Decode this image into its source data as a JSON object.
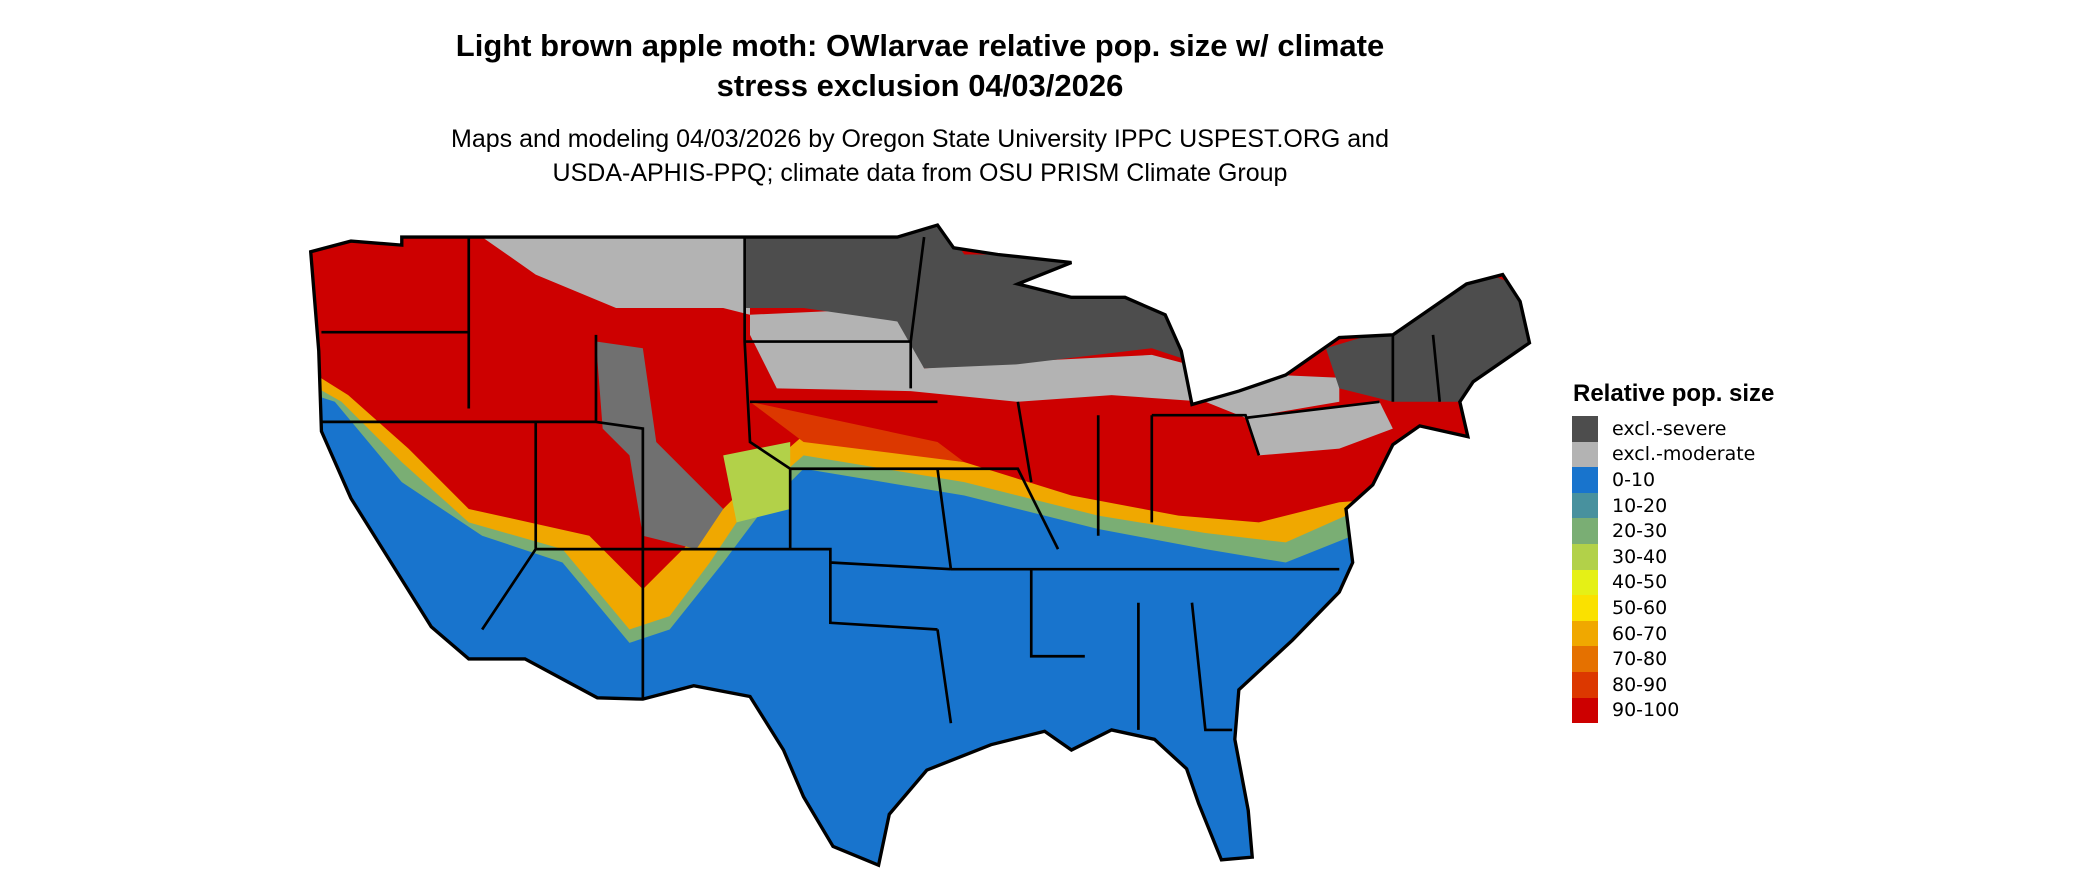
{
  "title": "Light brown apple moth: OWlarvae relative pop. size w/ climate stress exclusion 04/03/2026",
  "title_lines": [
    "Light brown apple moth: OWlarvae relative pop. size w/ climate",
    "stress exclusion 04/03/2026"
  ],
  "subtitle_lines": [
    "Maps and modeling 04/03/2026 by Oregon State University IPPC USPEST.ORG and",
    "USDA-APHIS-PPQ; climate data from OSU PRISM Climate Group"
  ],
  "legend": {
    "title": "Relative pop. size",
    "items": [
      {
        "label": "excl.-severe",
        "color": "#4d4d4d"
      },
      {
        "label": "excl.-moderate",
        "color": "#b3b3b3"
      },
      {
        "label": "0-10",
        "color": "#1874cd"
      },
      {
        "label": "10-20",
        "color": "#48919e"
      },
      {
        "label": "20-30",
        "color": "#7aae74"
      },
      {
        "label": "30-40",
        "color": "#b2d149"
      },
      {
        "label": "40-50",
        "color": "#e5f016"
      },
      {
        "label": "50-60",
        "color": "#fae100"
      },
      {
        "label": "60-70",
        "color": "#f0a800"
      },
      {
        "label": "70-80",
        "color": "#e57100"
      },
      {
        "label": "80-90",
        "color": "#dc3800"
      },
      {
        "label": "90-100",
        "color": "#cd0000"
      }
    ]
  },
  "map": {
    "region": "Contiguous United States",
    "border_color": "#000000"
  }
}
